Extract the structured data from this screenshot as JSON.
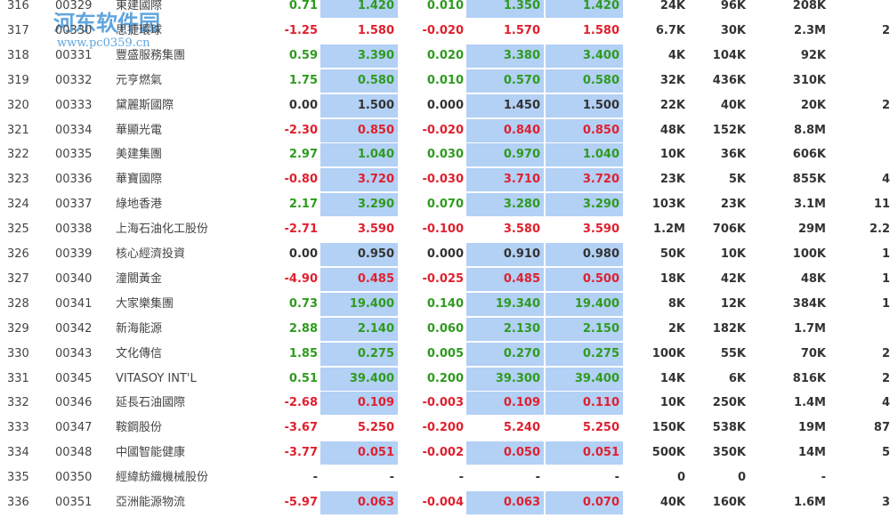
{
  "watermark": {
    "title": "河东软件园",
    "url": "www.pc0359.cn"
  },
  "table": {
    "rows": [
      [
        "316",
        "00329",
        "東建國際",
        "0.71",
        "1.420",
        "0.010",
        "1.350",
        "1.420",
        "24K",
        "96K",
        "208K",
        ""
      ],
      [
        "317",
        "00330",
        "思捷環球",
        "-1.25",
        "1.580",
        "-0.020",
        "1.570",
        "1.580",
        "6.7K",
        "30K",
        "2.3M",
        "2"
      ],
      [
        "318",
        "00331",
        "豐盛服務集團",
        "0.59",
        "3.390",
        "0.020",
        "3.380",
        "3.400",
        "4K",
        "104K",
        "92K",
        ""
      ],
      [
        "319",
        "00332",
        "元亨燃氣",
        "1.75",
        "0.580",
        "0.010",
        "0.570",
        "0.580",
        "32K",
        "436K",
        "310K",
        ""
      ],
      [
        "320",
        "00333",
        "黛麗斯國際",
        "0.00",
        "1.500",
        "0.000",
        "1.450",
        "1.500",
        "22K",
        "40K",
        "20K",
        "2"
      ],
      [
        "321",
        "00334",
        "華顯光電",
        "-2.30",
        "0.850",
        "-0.020",
        "0.840",
        "0.850",
        "48K",
        "152K",
        "8.8M",
        ""
      ],
      [
        "322",
        "00335",
        "美建集團",
        "2.97",
        "1.040",
        "0.030",
        "0.970",
        "1.040",
        "10K",
        "36K",
        "606K",
        ""
      ],
      [
        "323",
        "00336",
        "華寶國際",
        "-0.80",
        "3.720",
        "-0.030",
        "3.710",
        "3.720",
        "23K",
        "5K",
        "855K",
        "4"
      ],
      [
        "324",
        "00337",
        "綠地香港",
        "2.17",
        "3.290",
        "0.070",
        "3.280",
        "3.290",
        "103K",
        "23K",
        "3.1M",
        "11"
      ],
      [
        "325",
        "00338",
        "上海石油化工股份",
        "-2.71",
        "3.590",
        "-0.100",
        "3.580",
        "3.590",
        "1.2M",
        "706K",
        "29M",
        "2.2"
      ],
      [
        "326",
        "00339",
        "核心經濟投資",
        "0.00",
        "0.950",
        "0.000",
        "0.910",
        "0.980",
        "50K",
        "10K",
        "100K",
        "1"
      ],
      [
        "327",
        "00340",
        "潼關黃金",
        "-4.90",
        "0.485",
        "-0.025",
        "0.485",
        "0.500",
        "18K",
        "42K",
        "48K",
        "1"
      ],
      [
        "328",
        "00341",
        "大家樂集團",
        "0.73",
        "19.400",
        "0.140",
        "19.340",
        "19.400",
        "8K",
        "12K",
        "384K",
        "1"
      ],
      [
        "329",
        "00342",
        "新海能源",
        "2.88",
        "2.140",
        "0.060",
        "2.130",
        "2.150",
        "2K",
        "182K",
        "1.7M",
        ""
      ],
      [
        "330",
        "00343",
        "文化傳信",
        "1.85",
        "0.275",
        "0.005",
        "0.270",
        "0.275",
        "100K",
        "55K",
        "70K",
        "2"
      ],
      [
        "331",
        "00345",
        "VITASOY INT'L",
        "0.51",
        "39.400",
        "0.200",
        "39.300",
        "39.400",
        "14K",
        "6K",
        "816K",
        "2"
      ],
      [
        "332",
        "00346",
        "延長石油國際",
        "-2.68",
        "0.109",
        "-0.003",
        "0.109",
        "0.110",
        "10K",
        "250K",
        "1.4M",
        "4"
      ],
      [
        "333",
        "00347",
        "鞍鋼股份",
        "-3.67",
        "5.250",
        "-0.200",
        "5.240",
        "5.250",
        "150K",
        "538K",
        "19M",
        "87"
      ],
      [
        "334",
        "00348",
        "中國智能健康",
        "-3.77",
        "0.051",
        "-0.002",
        "0.050",
        "0.051",
        "500K",
        "350K",
        "14M",
        "5"
      ],
      [
        "335",
        "00350",
        "經緯紡織機械股份",
        "-",
        "-",
        "-",
        "-",
        "-",
        "0",
        "0",
        "-",
        ""
      ],
      [
        "336",
        "00351",
        "亞洲能源物流",
        "-5.97",
        "0.063",
        "-0.004",
        "0.063",
        "0.070",
        "40K",
        "160K",
        "1.6M",
        "3"
      ]
    ]
  }
}
